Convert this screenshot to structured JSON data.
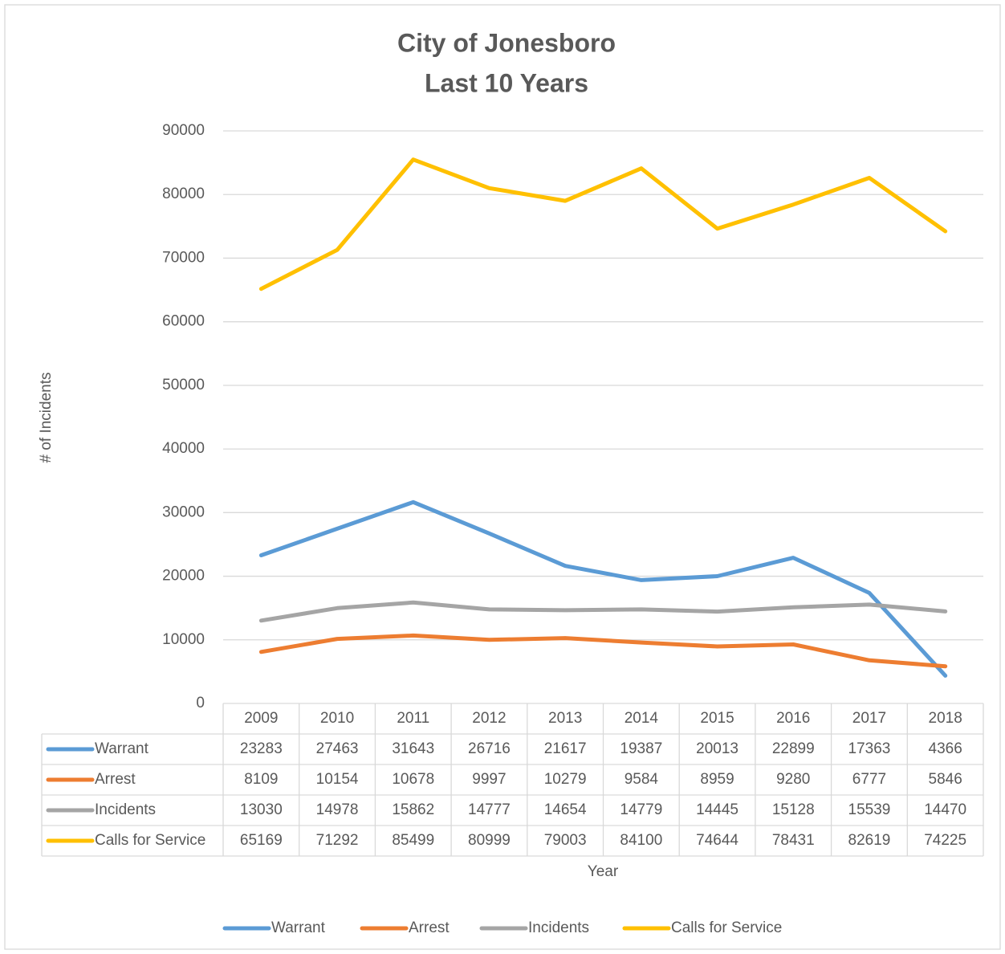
{
  "chart_data": {
    "type": "line",
    "title": "City of Jonesboro",
    "subtitle": "Last 10 Years",
    "y_label": "# of Incidents",
    "x_label": "Year",
    "categories": [
      "2009",
      "2010",
      "2011",
      "2012",
      "2013",
      "2014",
      "2015",
      "2016",
      "2017",
      "2018"
    ],
    "series": [
      {
        "name": "Warrant",
        "color": "#5b9bd5",
        "values": [
          23283,
          27463,
          31643,
          26716,
          21617,
          19387,
          20013,
          22899,
          17363,
          4366
        ]
      },
      {
        "name": "Arrest",
        "color": "#ed7d31",
        "values": [
          8109,
          10154,
          10678,
          9997,
          10279,
          9584,
          8959,
          9280,
          6777,
          5846
        ]
      },
      {
        "name": "Incidents",
        "color": "#a5a5a5",
        "values": [
          13030,
          14978,
          15862,
          14777,
          14654,
          14779,
          14445,
          15128,
          15539,
          14470
        ]
      },
      {
        "name": "Calls for Service",
        "color": "#ffc000",
        "values": [
          65169,
          71292,
          85499,
          80999,
          79003,
          84100,
          74644,
          78431,
          82619,
          74225
        ]
      }
    ],
    "ylim": [
      0,
      90000
    ],
    "yticks": [
      0,
      10000,
      20000,
      30000,
      40000,
      50000,
      60000,
      70000,
      80000,
      90000
    ],
    "grid": true,
    "legend": "bottom"
  }
}
